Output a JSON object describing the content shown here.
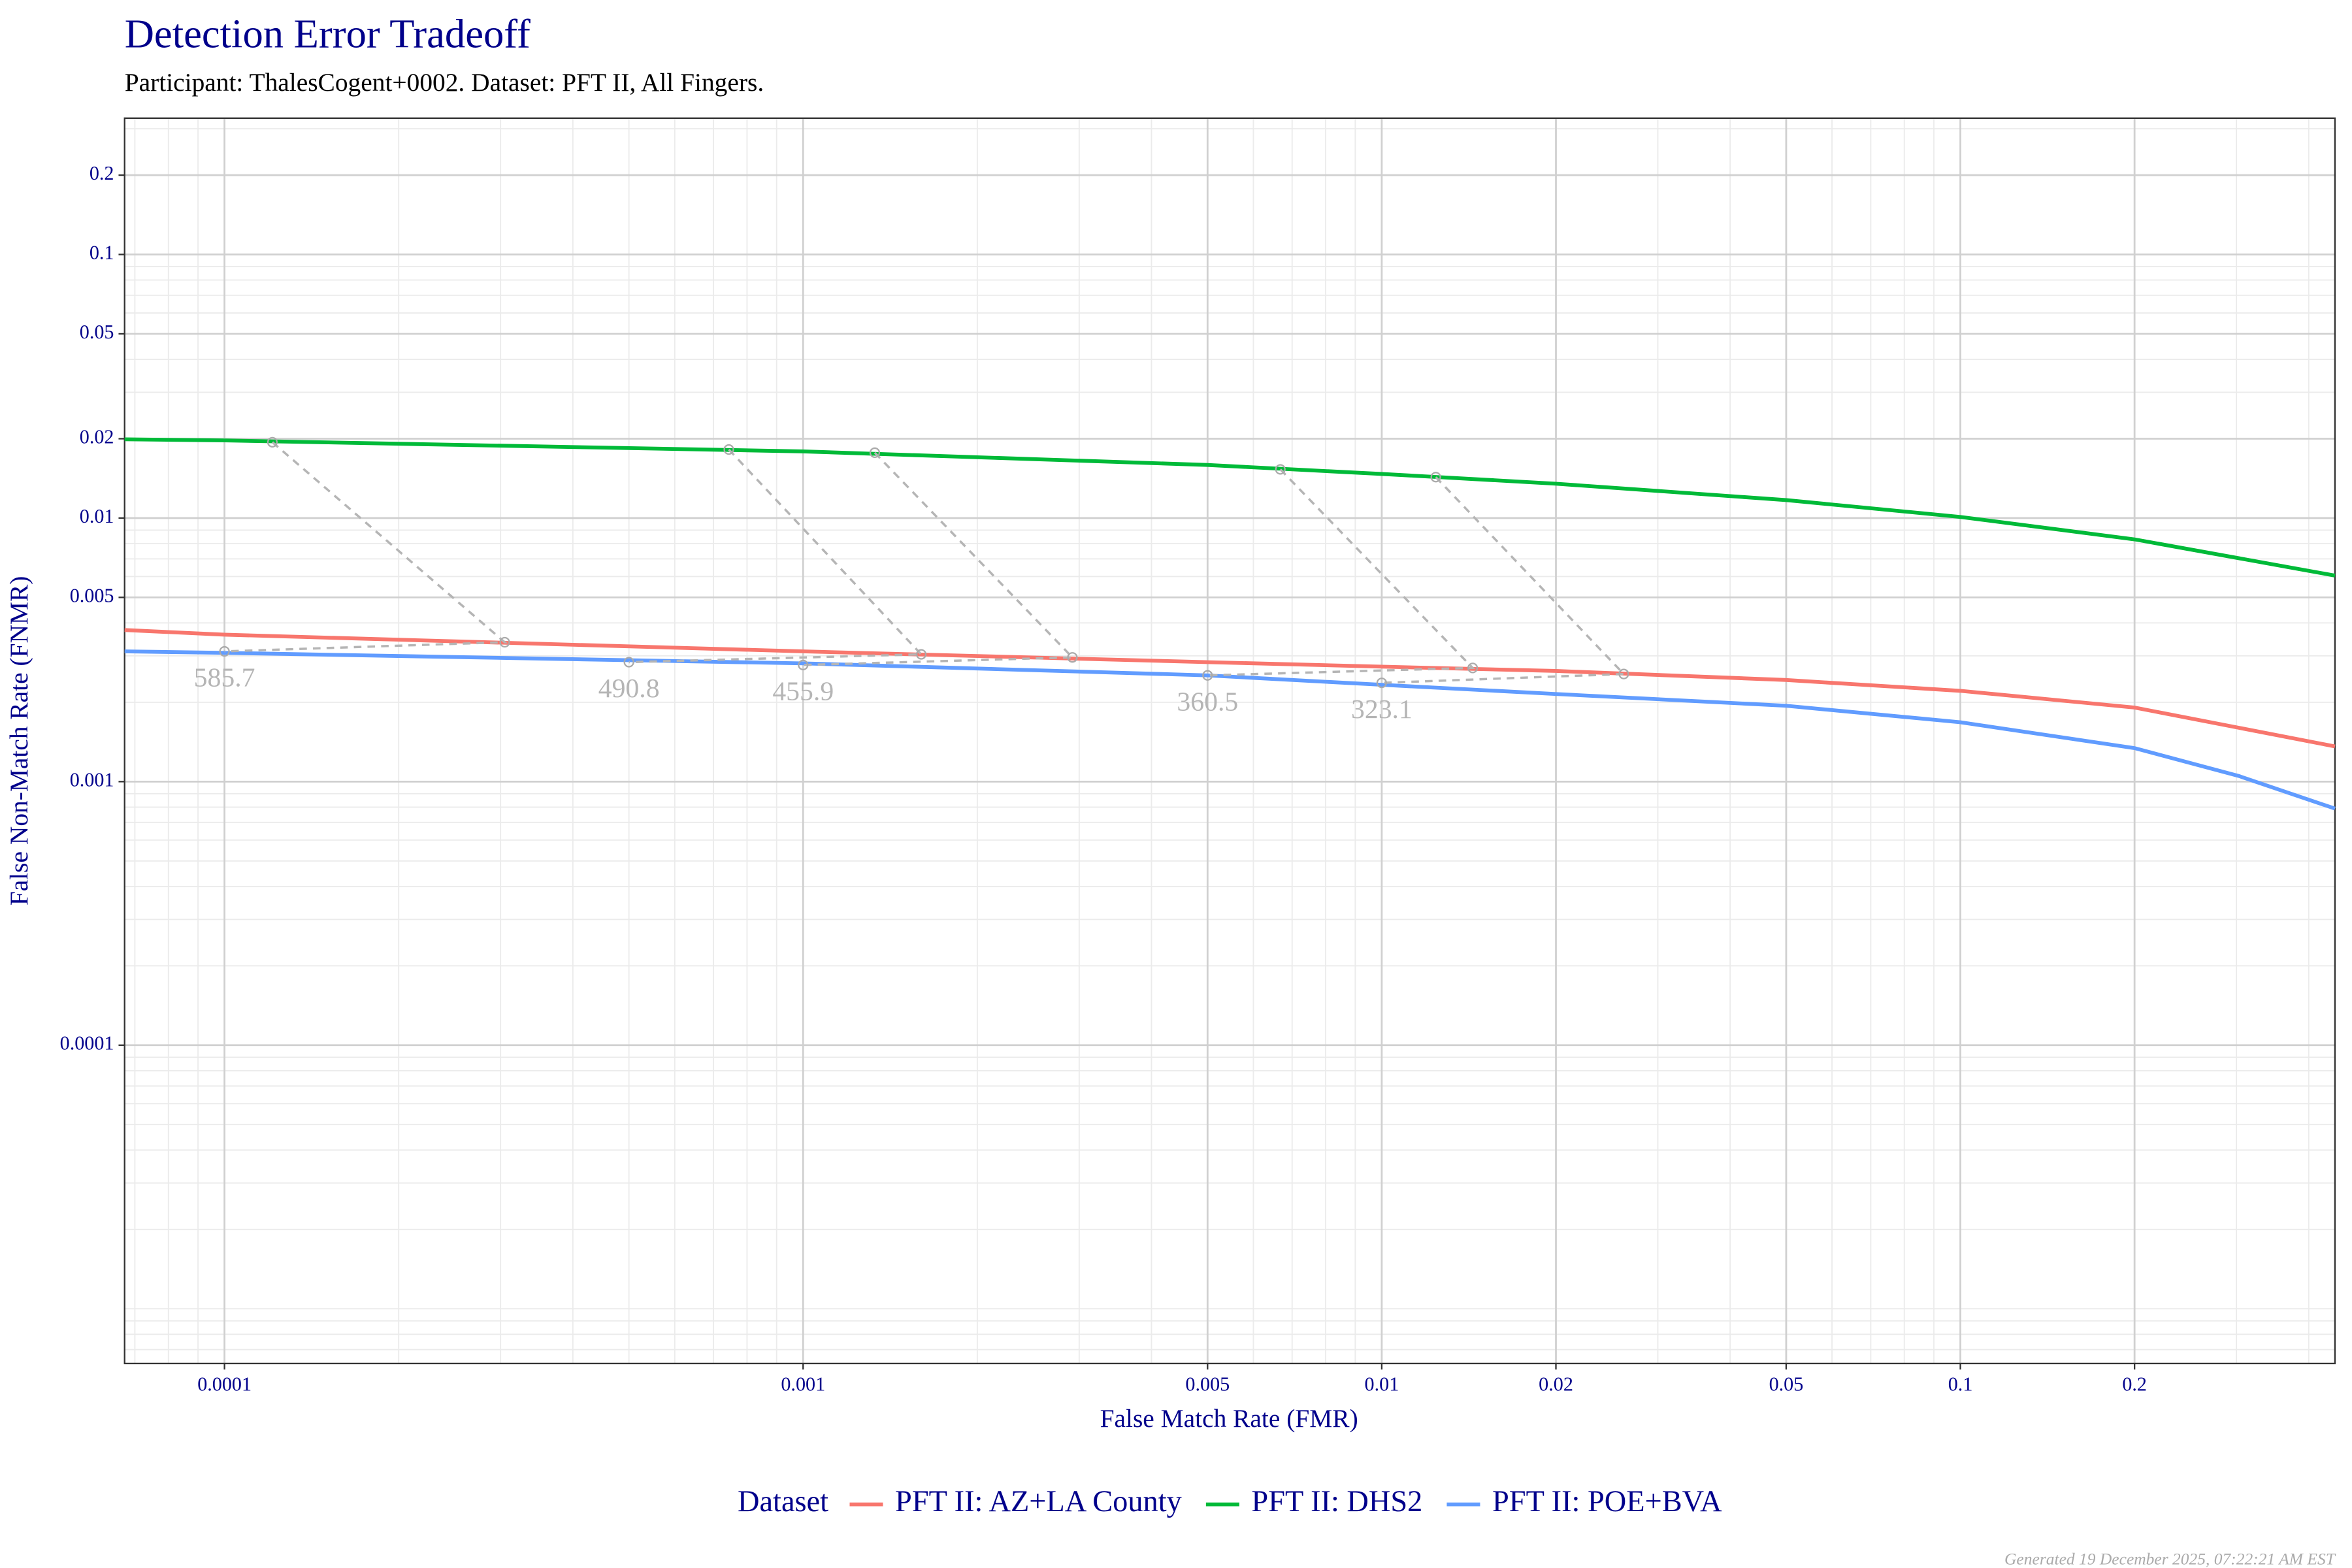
{
  "chart_data": {
    "type": "line",
    "title": "Detection Error Tradeoff",
    "subtitle": "Participant: ThalesCogent+0002. Dataset: PFT II, All Fingers.",
    "x_label": "False Match Rate (FMR)",
    "y_label": "False Non-Match Rate (FNMR)",
    "x_scale": "log",
    "y_scale": "log",
    "grid": true,
    "xlim": [
      6.72e-05,
      0.444
    ],
    "ylim": [
      6.2e-06,
      0.329
    ],
    "xticks": [
      0.0001,
      0.001,
      0.005,
      0.01,
      0.02,
      0.05,
      0.1,
      0.2
    ],
    "yticks": [
      0.0001,
      0.001,
      0.005,
      0.01,
      0.02,
      0.05,
      0.1,
      0.2
    ],
    "legend_title": "Dataset",
    "legend_position": "bottom",
    "series": [
      {
        "name": "PFT II: AZ+LA County",
        "color": "#F8766D",
        "x": [
          6.72e-05,
          0.0001,
          0.001,
          0.005,
          0.01,
          0.02,
          0.05,
          0.1,
          0.2,
          0.444
        ],
        "values": [
          0.00376,
          0.00361,
          0.00312,
          0.00284,
          0.00273,
          0.00263,
          0.00243,
          0.00221,
          0.00191,
          0.00136
        ]
      },
      {
        "name": "PFT II: DHS2",
        "color": "#00BA38",
        "x": [
          6.72e-05,
          0.0001,
          0.001,
          0.005,
          0.01,
          0.02,
          0.05,
          0.1,
          0.2,
          0.444
        ],
        "values": [
          0.0199,
          0.0197,
          0.0179,
          0.0159,
          0.0147,
          0.0135,
          0.0117,
          0.0101,
          0.0083,
          0.00605
        ]
      },
      {
        "name": "PFT II: POE+BVA",
        "color": "#619CFF",
        "x": [
          6.72e-05,
          0.0001,
          0.001,
          0.005,
          0.01,
          0.02,
          0.05,
          0.1,
          0.2,
          0.303,
          0.444
        ],
        "values": [
          0.00312,
          0.00308,
          0.00281,
          0.00253,
          0.00233,
          0.00215,
          0.00194,
          0.00168,
          0.00134,
          0.00105,
          0.00079
        ]
      }
    ],
    "thresholds": [
      {
        "label": 585.7,
        "fmr": [
          0.000305,
          0.000121,
          0.0001
        ],
        "fnmr": [
          0.00338,
          0.0194,
          0.00312
        ]
      },
      {
        "label": 490.8,
        "fmr": [
          0.0016,
          0.000744,
          0.0005
        ],
        "fnmr": [
          0.00304,
          0.0182,
          0.00284
        ]
      },
      {
        "label": 455.9,
        "fmr": [
          0.00292,
          0.00133,
          0.001
        ],
        "fnmr": [
          0.00296,
          0.0177,
          0.00277
        ]
      },
      {
        "label": 360.5,
        "fmr": [
          0.01436,
          0.00668,
          0.005
        ],
        "fnmr": [
          0.0027,
          0.0153,
          0.00253
        ]
      },
      {
        "label": 323.1,
        "fmr": [
          0.0262,
          0.0124,
          0.01
        ],
        "fnmr": [
          0.00256,
          0.0143,
          0.00237
        ]
      }
    ],
    "footer": "Generated 19 December 2025, 07:22:21 AM EST"
  }
}
